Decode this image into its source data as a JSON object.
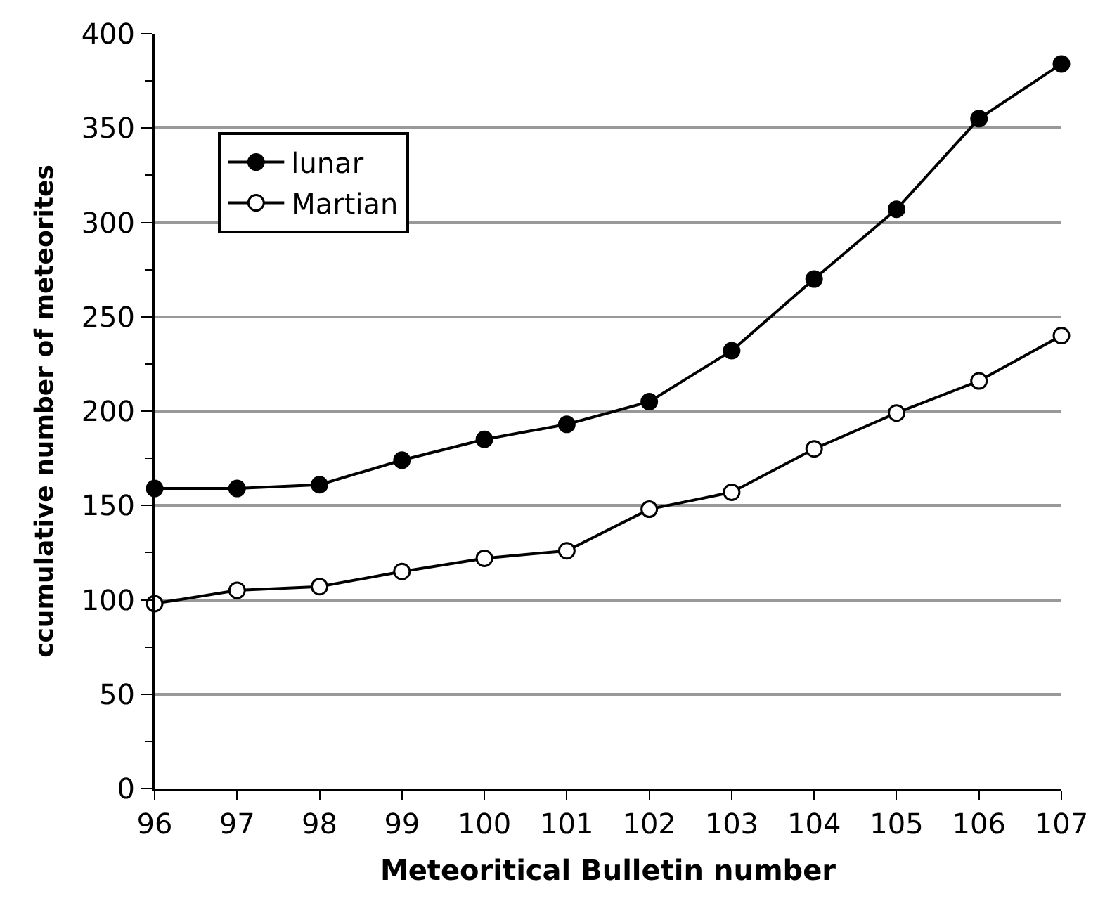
{
  "chart_data": {
    "type": "line",
    "xlabel": "Meteoritical Bulletin number",
    "ylabel": "ccumulative number of meteorites",
    "x": [
      96,
      97,
      98,
      99,
      100,
      101,
      102,
      103,
      104,
      105,
      106,
      107
    ],
    "series": [
      {
        "name": "lunar",
        "color": "#000000",
        "values": [
          159,
          159,
          161,
          174,
          185,
          193,
          205,
          232,
          270,
          307,
          355,
          384
        ]
      },
      {
        "name": "Martian",
        "color": "#000000",
        "values": [
          98,
          105,
          107,
          115,
          122,
          126,
          148,
          157,
          180,
          199,
          216,
          240
        ]
      }
    ],
    "xlim": [
      96,
      107
    ],
    "xticks": [
      96,
      97,
      98,
      99,
      100,
      101,
      102,
      103,
      104,
      105,
      106,
      107
    ],
    "ylim": [
      0,
      400
    ],
    "yticks": [
      0,
      {
        "value": 25,
        "label": null
      },
      50,
      {
        "value": 75,
        "label": null
      },
      100,
      {
        "value": 125,
        "label": null
      },
      150,
      {
        "value": 175,
        "label": null
      },
      200,
      {
        "value": 225,
        "label": null
      },
      250,
      {
        "value": 275,
        "label": null
      },
      300,
      {
        "value": 325,
        "label": null
      },
      350,
      {
        "value": 375,
        "label": null
      },
      400
    ],
    "grid": "y",
    "legend": "top left",
    "marker": "circle",
    "line_style": "solid"
  }
}
